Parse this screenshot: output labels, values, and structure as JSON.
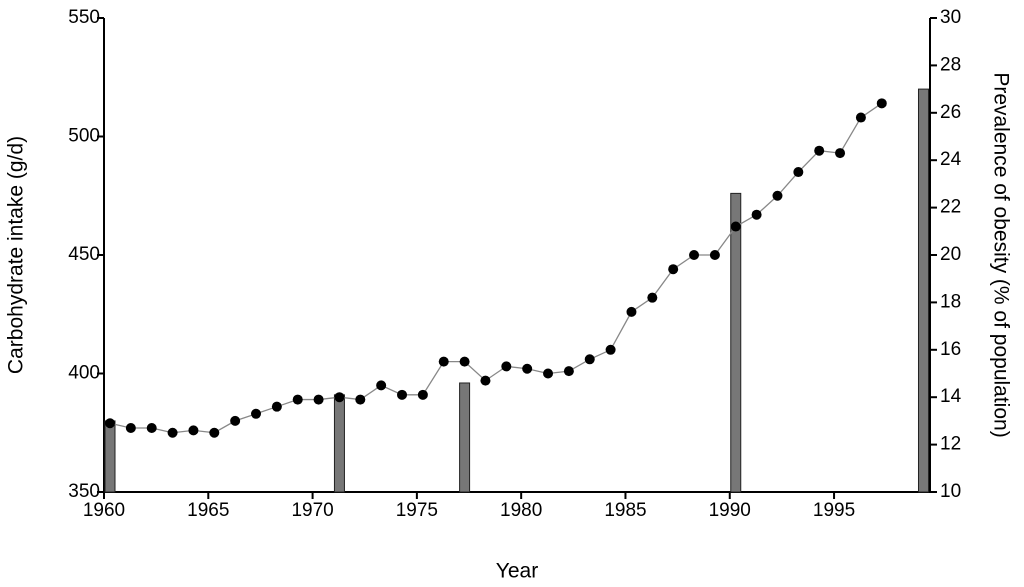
{
  "chart_data": {
    "type": "bar-line",
    "xlabel": "Year",
    "ylabel": "Carbohydrate intake (g/d)",
    "y2label": "Prevalence of obesity (% of population)",
    "xlim": [
      1960,
      1999.6
    ],
    "xticks": [
      1960,
      1965,
      1970,
      1975,
      1980,
      1985,
      1990,
      1995
    ],
    "ylim": [
      350,
      550
    ],
    "yticks": [
      350,
      400,
      450,
      500,
      550
    ],
    "y2lim": [
      10,
      30
    ],
    "y2ticks": [
      10,
      12,
      14,
      16,
      18,
      20,
      22,
      24,
      26,
      28,
      30
    ],
    "series": [
      {
        "type": "bar",
        "axis": "y2",
        "color": "#777777",
        "x": [
          1960,
          1971,
          1977,
          1990,
          1999
        ],
        "values": [
          13.0,
          14.1,
          14.6,
          22.6,
          27.0
        ]
      },
      {
        "type": "line",
        "axis": "y",
        "color": "#888888",
        "x": [
          1960,
          1961,
          1962,
          1963,
          1964,
          1965,
          1966,
          1967,
          1968,
          1969,
          1970,
          1971,
          1972,
          1973,
          1974,
          1975,
          1976,
          1977,
          1978,
          1979,
          1980,
          1981,
          1982,
          1983,
          1984,
          1985,
          1986,
          1987,
          1988,
          1989,
          1990,
          1991,
          1992,
          1993,
          1994,
          1995,
          1996,
          1997
        ],
        "values": [
          379,
          377,
          377,
          375,
          376,
          375,
          380,
          383,
          386,
          389,
          389,
          390,
          389,
          395,
          391,
          391,
          405,
          405,
          397,
          403,
          402,
          400,
          401,
          406,
          410,
          426,
          432,
          444,
          450,
          450,
          462,
          467,
          475,
          485,
          494,
          493,
          508,
          514
        ]
      }
    ]
  }
}
